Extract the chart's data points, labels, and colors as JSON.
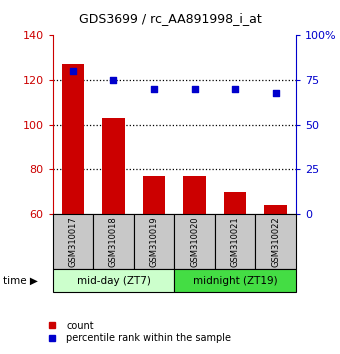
{
  "title": "GDS3699 / rc_AA891998_i_at",
  "samples": [
    "GSM310017",
    "GSM310018",
    "GSM310019",
    "GSM310020",
    "GSM310021",
    "GSM310022"
  ],
  "counts": [
    127,
    103,
    77,
    77,
    70,
    64
  ],
  "percentiles": [
    80,
    75,
    70,
    70,
    70,
    68
  ],
  "ylim_left": [
    60,
    140
  ],
  "ylim_right": [
    0,
    100
  ],
  "yticks_left": [
    60,
    80,
    100,
    120,
    140
  ],
  "yticks_right": [
    0,
    25,
    50,
    75,
    100
  ],
  "yticklabels_right": [
    "0",
    "25",
    "50",
    "75",
    "100%"
  ],
  "bar_color": "#cc0000",
  "scatter_color": "#0000cc",
  "group1_label": "mid-day (ZT7)",
  "group2_label": "midnight (ZT19)",
  "group1_color": "#ccffcc",
  "group2_color": "#44dd44",
  "sample_box_color": "#c8c8c8",
  "legend_count": "count",
  "legend_percentile": "percentile rank within the sample",
  "time_label": "time",
  "bg_color": "#ffffff",
  "bar_width": 0.55,
  "grid_color": "#000000",
  "grid_linestyle": "dotted",
  "grid_yticks": [
    80,
    100,
    120
  ]
}
